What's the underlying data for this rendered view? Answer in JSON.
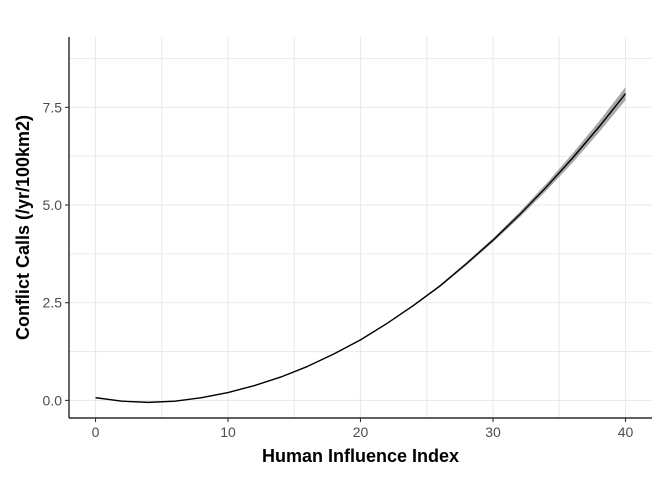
{
  "chart_data": {
    "type": "line",
    "title": "",
    "xlabel": "Human Influence Index",
    "ylabel": "Conflict Calls (/yr/100km2)",
    "xlim": [
      -2,
      42
    ],
    "ylim": [
      -0.45,
      9.3
    ],
    "x_ticks": [
      0,
      10,
      20,
      30,
      40
    ],
    "x_tick_labels": [
      "0",
      "10",
      "20",
      "30",
      "40"
    ],
    "y_ticks": [
      0,
      2.5,
      5,
      7.5
    ],
    "y_tick_labels": [
      "0.0",
      "2.5",
      "5.0",
      "7.5"
    ],
    "grid": true,
    "legend": "none",
    "series": [
      {
        "x": [
          0,
          2,
          4,
          6,
          8,
          10,
          12,
          14,
          16,
          18,
          20,
          22,
          24,
          26,
          28,
          30,
          32,
          34,
          36,
          38,
          40
        ],
        "y": [
          0.07,
          -0.02,
          -0.05,
          -0.02,
          0.07,
          0.2,
          0.38,
          0.6,
          0.87,
          1.19,
          1.55,
          1.97,
          2.43,
          2.93,
          3.5,
          4.1,
          4.75,
          5.45,
          6.2,
          7.0,
          7.85
        ],
        "ci_lower": [
          0.05,
          -0.03,
          -0.06,
          -0.03,
          0.06,
          0.19,
          0.37,
          0.59,
          0.86,
          1.18,
          1.54,
          1.96,
          2.41,
          2.9,
          3.46,
          4.05,
          4.68,
          5.36,
          6.08,
          6.86,
          7.68
        ],
        "ci_upper": [
          0.09,
          -0.01,
          -0.04,
          -0.01,
          0.08,
          0.21,
          0.39,
          0.61,
          0.88,
          1.2,
          1.56,
          1.98,
          2.45,
          2.96,
          3.54,
          4.15,
          4.82,
          5.54,
          6.32,
          7.14,
          8.02
        ],
        "color": "#000000",
        "ribbon_color": "#999999"
      }
    ]
  }
}
